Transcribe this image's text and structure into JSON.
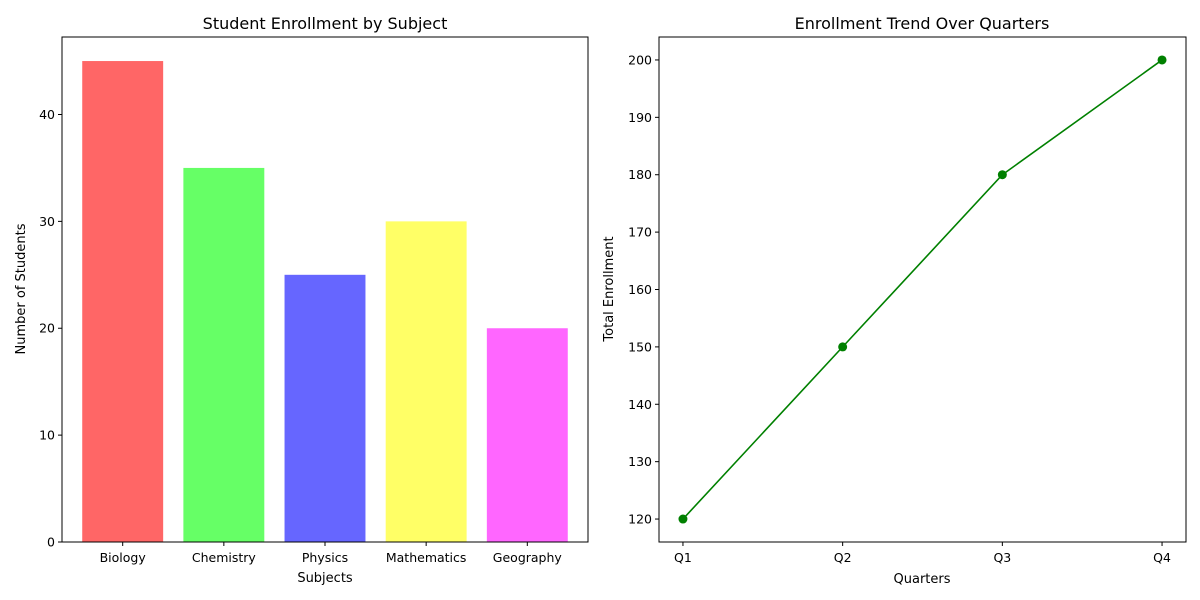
{
  "chart_data": [
    {
      "type": "bar",
      "title": "Student Enrollment by Subject",
      "xlabel": "Subjects",
      "ylabel": "Number of Students",
      "categories": [
        "Biology",
        "Chemistry",
        "Physics",
        "Mathematics",
        "Geography"
      ],
      "values": [
        45,
        35,
        25,
        30,
        20
      ],
      "colors": [
        "#ff6666",
        "#66ff66",
        "#6666ff",
        "#ffff66",
        "#ff66ff"
      ],
      "ylim": [
        0,
        47.25
      ],
      "yticks": [
        0,
        10,
        20,
        30,
        40
      ],
      "grid": false
    },
    {
      "type": "line",
      "title": "Enrollment Trend Over Quarters",
      "xlabel": "Quarters",
      "ylabel": "Total Enrollment",
      "categories": [
        "Q1",
        "Q2",
        "Q3",
        "Q4"
      ],
      "values": [
        120,
        150,
        180,
        200
      ],
      "color": "#008000",
      "marker": "circle",
      "ylim": [
        116,
        204
      ],
      "yticks": [
        120,
        130,
        140,
        150,
        160,
        170,
        180,
        190,
        200
      ],
      "grid": false
    }
  ]
}
